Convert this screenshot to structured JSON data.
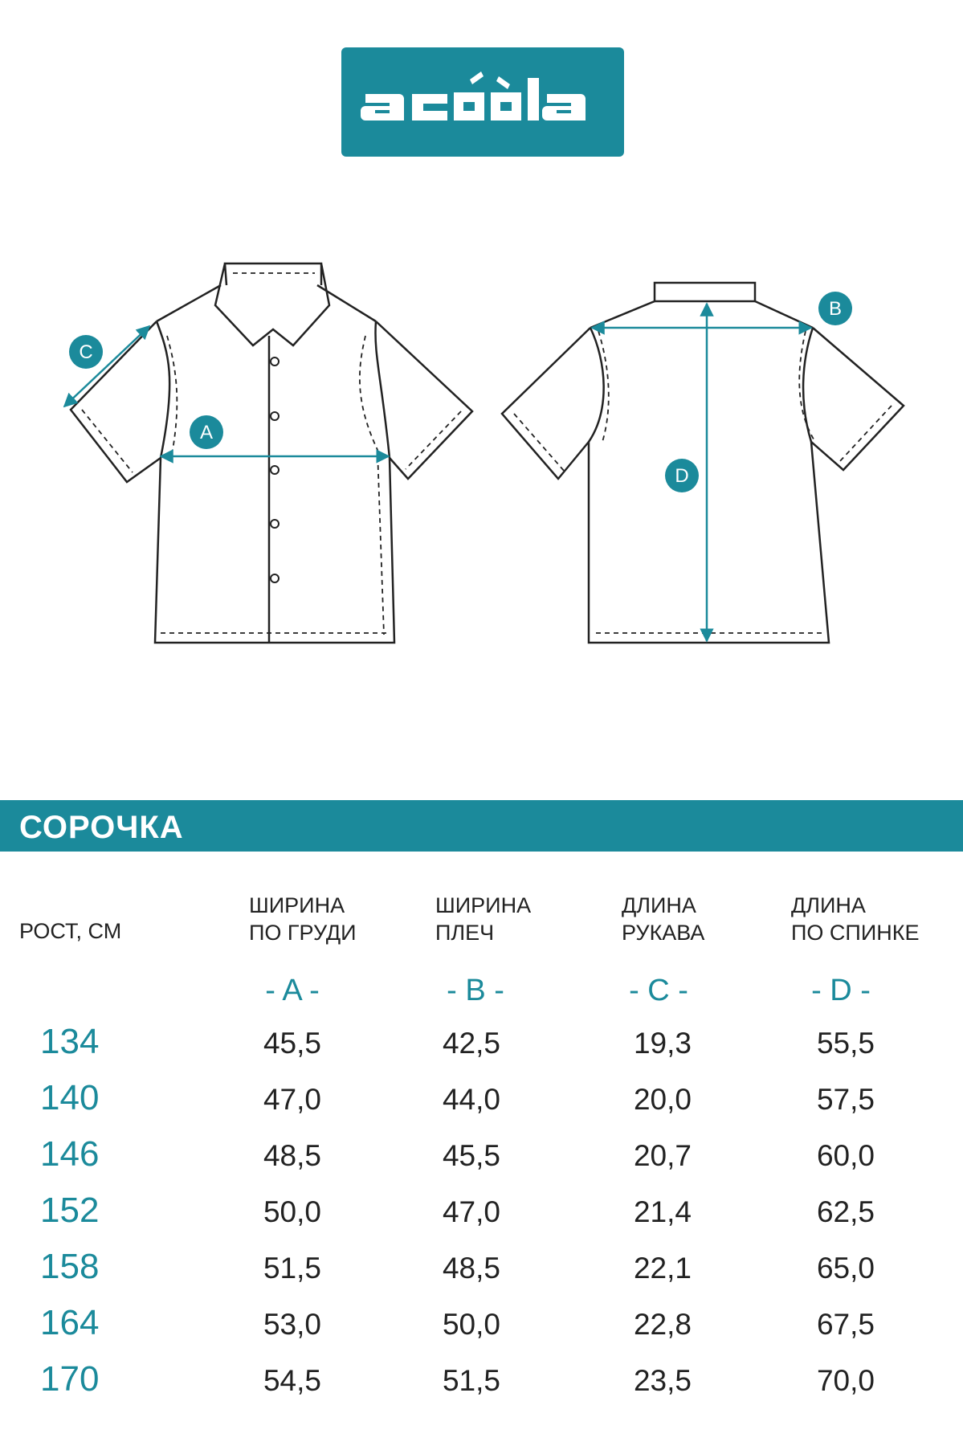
{
  "brand": {
    "logo_text": "acoola",
    "accent_color": "#1b8a9b"
  },
  "diagram": {
    "labels": {
      "a": "A",
      "b": "B",
      "c": "C",
      "d": "D"
    }
  },
  "section_title": "СОРОЧКА",
  "table": {
    "size_header": "РОСТ, СМ",
    "columns": [
      {
        "line1": "ШИРИНА",
        "line2": "ПО ГРУДИ",
        "letter": "- A -"
      },
      {
        "line1": "ШИРИНА",
        "line2": "ПЛЕЧ",
        "letter": "- B -"
      },
      {
        "line1": "ДЛИНА",
        "line2": "РУКАВА",
        "letter": "- C -"
      },
      {
        "line1": "ДЛИНА",
        "line2": "ПО СПИНКЕ",
        "letter": "- D -"
      }
    ],
    "rows": [
      {
        "size": "134",
        "values": [
          "45,5",
          "42,5",
          "19,3",
          "55,5"
        ]
      },
      {
        "size": "140",
        "values": [
          "47,0",
          "44,0",
          "20,0",
          "57,5"
        ]
      },
      {
        "size": "146",
        "values": [
          "48,5",
          "45,5",
          "20,7",
          "60,0"
        ]
      },
      {
        "size": "152",
        "values": [
          "50,0",
          "47,0",
          "21,4",
          "62,5"
        ]
      },
      {
        "size": "158",
        "values": [
          "51,5",
          "48,5",
          "22,1",
          "65,0"
        ]
      },
      {
        "size": "164",
        "values": [
          "53,0",
          "50,0",
          "22,8",
          "67,5"
        ]
      },
      {
        "size": "170",
        "values": [
          "54,5",
          "51,5",
          "23,5",
          "70,0"
        ]
      }
    ]
  }
}
